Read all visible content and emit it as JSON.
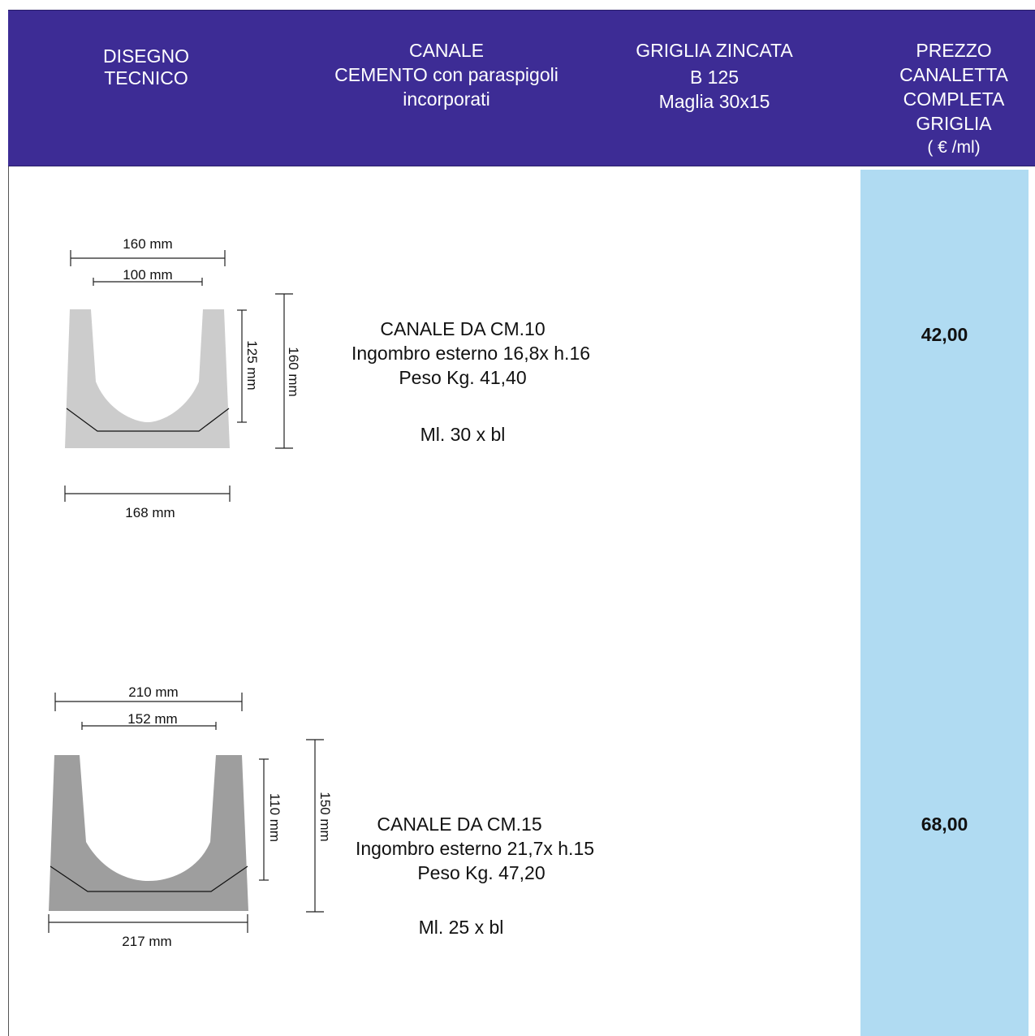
{
  "header": {
    "col1": [
      "DISEGNO",
      "TECNICO"
    ],
    "col2": [
      "CANALE",
      "CEMENTO con paraspigoli",
      "incorporati"
    ],
    "col3": [
      "GRIGLIA ZINCATA",
      "B 125",
      "Maglia 30x15"
    ],
    "col4": [
      "PREZZO",
      "CANALETTA",
      "COMPLETA",
      "GRIGLIA",
      "( € /ml)"
    ]
  },
  "products": [
    {
      "title": "CANALE DA CM.10",
      "size": "Ingombro esterno 16,8x h.16",
      "weight": "Peso Kg. 41,40",
      "pack": "Ml. 30 x bl",
      "price": "42,00",
      "dim_top_outer": "160 mm",
      "dim_top_inner": "100 mm",
      "dim_inner_height": "125 mm",
      "dim_outer_height": "160 mm",
      "dim_bottom": "168 mm",
      "fill_color": "#cccccc"
    },
    {
      "title": "CANALE DA CM.15",
      "size": "Ingombro esterno 21,7x h.15",
      "weight": "Peso Kg. 47,20",
      "pack": "Ml. 25 x bl",
      "price": "68,00",
      "dim_top_outer": "210 mm",
      "dim_top_inner": "152 mm",
      "dim_inner_height": "110 mm",
      "dim_outer_height": "150 mm",
      "dim_bottom": "217 mm",
      "fill_color": "#9e9e9e"
    }
  ],
  "colors": {
    "header_bg": "#3d2c95",
    "price_col_bg": "#b0dbf2"
  }
}
